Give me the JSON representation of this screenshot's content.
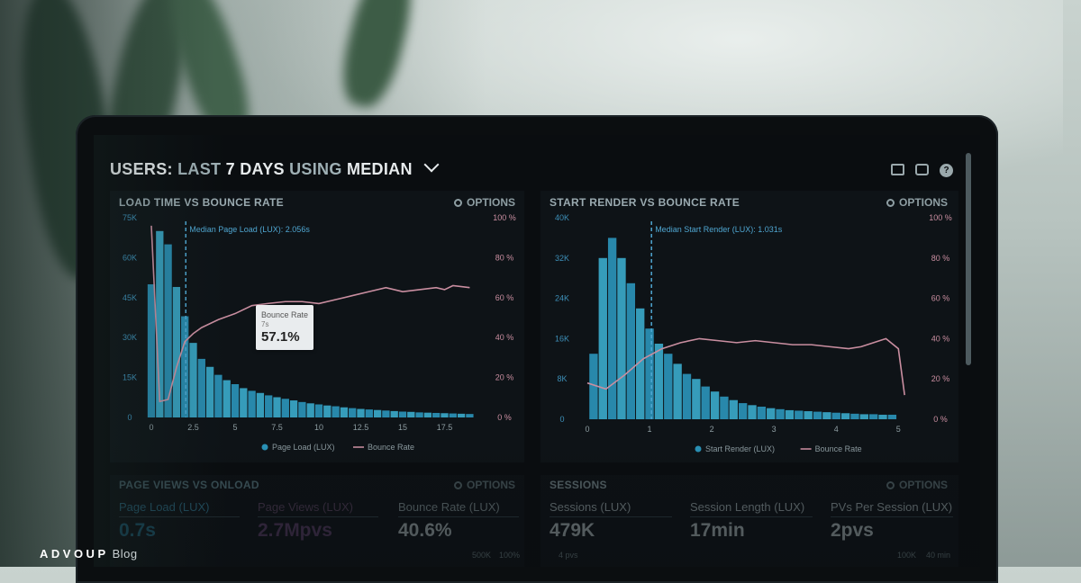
{
  "dashboard": {
    "title_prefix": "USERS:",
    "title_range_prefix": "LAST",
    "title_range_value": "7 DAYS",
    "title_using": "USING",
    "title_method": "MEDIAN",
    "icons": [
      "monitor-icon",
      "share-icon",
      "help-icon"
    ]
  },
  "options_label": "OPTIONS",
  "panels": {
    "load": {
      "title": "LOAD TIME VS BOUNCE RATE",
      "marker_label": "Median Page Load (LUX): 2.056s",
      "legend_bar": "Page Load (LUX)",
      "legend_line": "Bounce Rate",
      "tooltip": {
        "label": "Bounce Rate",
        "x": "7s",
        "value": "57.1%"
      }
    },
    "render": {
      "title": "START RENDER VS BOUNCE RATE",
      "marker_label": "Median Start Render (LUX): 1.031s",
      "legend_bar": "Start Render (LUX)",
      "legend_line": "Bounce Rate"
    },
    "pageviews": {
      "title": "PAGE VIEWS VS ONLOAD",
      "stats": [
        {
          "label": "Page Load (LUX)",
          "value": "0.7s"
        },
        {
          "label": "Page Views (LUX)",
          "value": "2.7Mpvs"
        },
        {
          "label": "Bounce Rate (LUX)",
          "value": "40.6%"
        }
      ],
      "axis_right": [
        "500K",
        "100%"
      ]
    },
    "sessions": {
      "title": "SESSIONS",
      "stats": [
        {
          "label": "Sessions (LUX)",
          "value": "479K",
          "sub": "4 pvs"
        },
        {
          "label": "Session Length (LUX)",
          "value": "17min"
        },
        {
          "label": "PVs Per Session (LUX)",
          "value": "2pvs"
        }
      ],
      "axis_right": [
        "100K",
        "40 min"
      ]
    }
  },
  "brand": {
    "name": "ADVOUP",
    "suffix": "Blog"
  },
  "colors": {
    "bar": "#2a93b8",
    "bar_light": "#3aa8c9",
    "line": "#c98ea0",
    "marker": "#4fa6d1"
  },
  "chart_data": [
    {
      "type": "bar",
      "title": "LOAD TIME VS BOUNCE RATE",
      "x_ticks": [
        "0",
        "2.5",
        "5",
        "7.5",
        "10",
        "12.5",
        "15",
        "17.5"
      ],
      "y_left_ticks": [
        "0",
        "15K",
        "30K",
        "45K",
        "60K",
        "75K"
      ],
      "y_right_ticks": [
        "0 %",
        "20 %",
        "40 %",
        "60 %",
        "80 %",
        "100 %"
      ],
      "xlim": [
        0,
        20
      ],
      "ylim": [
        0,
        75000
      ],
      "y2lim": [
        0,
        100
      ],
      "bar_width": 0.5,
      "marker_x": 2.056,
      "series": [
        {
          "name": "Page Load (LUX)",
          "x": [
            0,
            0.5,
            1,
            1.5,
            2,
            2.5,
            3,
            3.5,
            4,
            4.5,
            5,
            5.5,
            6,
            6.5,
            7,
            7.5,
            8,
            8.5,
            9,
            9.5,
            10,
            10.5,
            11,
            11.5,
            12,
            12.5,
            13,
            13.5,
            14,
            14.5,
            15,
            15.5,
            16,
            16.5,
            17,
            17.5,
            18,
            18.5,
            19
          ],
          "values": [
            50000,
            70000,
            65000,
            49000,
            38000,
            28000,
            22000,
            19000,
            16000,
            14000,
            12500,
            11000,
            10000,
            9200,
            8300,
            7600,
            7000,
            6400,
            5800,
            5300,
            4900,
            4500,
            4200,
            3800,
            3500,
            3200,
            3000,
            2800,
            2600,
            2400,
            2200,
            2100,
            1900,
            1800,
            1700,
            1600,
            1500,
            1400,
            1300
          ]
        },
        {
          "name": "Bounce Rate",
          "x": [
            0,
            0.5,
            1,
            1.5,
            2,
            2.5,
            3,
            4,
            5,
            6,
            7,
            8,
            9,
            10,
            11,
            12,
            13,
            14,
            14.5,
            15,
            16,
            17,
            17.5,
            18,
            19
          ],
          "values": [
            96,
            8,
            9,
            25,
            38,
            42,
            45,
            49,
            52,
            56,
            57.1,
            58,
            58,
            57,
            59,
            61,
            63,
            65,
            64,
            63,
            64,
            65,
            64,
            66,
            65
          ]
        }
      ]
    },
    {
      "type": "bar",
      "title": "START RENDER VS BOUNCE RATE",
      "x_ticks": [
        "0",
        "1",
        "2",
        "3",
        "4",
        "5"
      ],
      "y_left_ticks": [
        "0",
        "8K",
        "16K",
        "24K",
        "32K",
        "40K"
      ],
      "y_right_ticks": [
        "0 %",
        "20 %",
        "40 %",
        "60 %",
        "80 %",
        "100 %"
      ],
      "xlim": [
        0,
        5.3
      ],
      "ylim": [
        0,
        40000
      ],
      "y2lim": [
        0,
        100
      ],
      "bar_width": 0.15,
      "marker_x": 1.031,
      "series": [
        {
          "name": "Start Render (LUX)",
          "x": [
            0.1,
            0.25,
            0.4,
            0.55,
            0.7,
            0.85,
            1.0,
            1.15,
            1.3,
            1.45,
            1.6,
            1.75,
            1.9,
            2.05,
            2.2,
            2.35,
            2.5,
            2.65,
            2.8,
            2.95,
            3.1,
            3.25,
            3.4,
            3.55,
            3.7,
            3.85,
            4.0,
            4.15,
            4.3,
            4.45,
            4.6,
            4.75,
            4.9
          ],
          "values": [
            13000,
            32000,
            36000,
            32000,
            27000,
            22000,
            18000,
            15000,
            13000,
            11000,
            9000,
            8000,
            6500,
            5500,
            4500,
            3800,
            3200,
            2800,
            2500,
            2200,
            2000,
            1800,
            1700,
            1600,
            1500,
            1400,
            1300,
            1200,
            1100,
            1000,
            1000,
            900,
            900
          ]
        },
        {
          "name": "Bounce Rate",
          "x": [
            0,
            0.3,
            0.6,
            0.9,
            1.2,
            1.5,
            1.8,
            2.1,
            2.4,
            2.7,
            3.0,
            3.3,
            3.6,
            3.9,
            4.2,
            4.4,
            4.6,
            4.8,
            5.0,
            5.1
          ],
          "values": [
            18,
            15,
            22,
            30,
            35,
            38,
            40,
            39,
            38,
            39,
            38,
            37,
            37,
            36,
            35,
            36,
            38,
            40,
            35,
            12
          ]
        }
      ]
    }
  ]
}
